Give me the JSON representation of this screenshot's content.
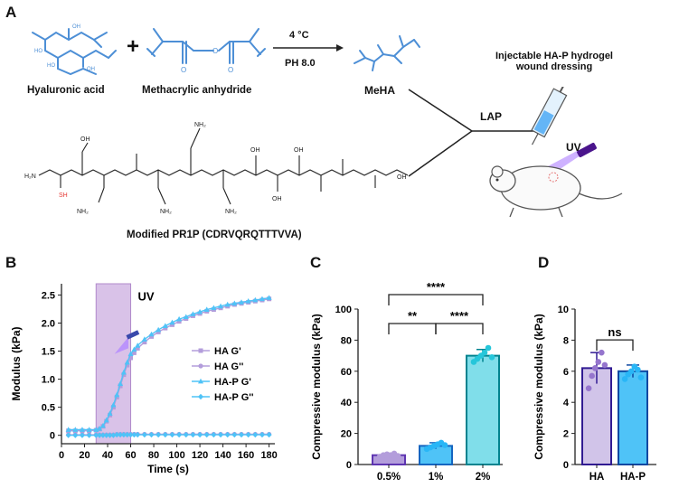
{
  "panel_a": {
    "letter": "A",
    "reagent_1": "Hyaluronic acid",
    "reagent_2": "Methacrylic anhydride",
    "condition_temp": "4 °C",
    "condition_ph": "PH 8.0",
    "product": "MeHA",
    "crosslinker": "LAP",
    "uv_label": "UV",
    "dressing_title_line1": "Injectable HA-P hydrogel",
    "dressing_title_line2": "wound dressing",
    "peptide_caption": "Modified PR1P (CDRVQRQTTTVVA)",
    "structure_labels": {
      "h2n": "H₂N",
      "sh": "SH",
      "oh": "OH",
      "nh2": "NH₂",
      "nh": "NH",
      "n": "N",
      "h": "H",
      "o": "O",
      "ho": "HO"
    }
  },
  "chart_data": [
    {
      "panel": "B",
      "type": "line",
      "xlabel": "Time (s)",
      "ylabel": "Modulus (kPa)",
      "xlim": [
        0,
        185
      ],
      "ylim": [
        -0.15,
        2.7
      ],
      "xticks": [
        0,
        20,
        40,
        60,
        80,
        100,
        120,
        140,
        160,
        180
      ],
      "yticks": [
        0,
        0.5,
        1.0,
        1.5,
        2.0,
        2.5
      ],
      "ytick_labels": [
        "0",
        "0.5",
        "1.0",
        "1.5",
        "2.0",
        "2.5"
      ],
      "annotation": "UV",
      "uv_window": [
        30,
        60
      ],
      "legend_position": "right",
      "colors": {
        "HA": "#b39ddb",
        "HA-P": "#4fc3f7",
        "uv_band": "#d9c2e8",
        "uv_border": "#b18acb"
      },
      "x": [
        6,
        12,
        18,
        24,
        30,
        33,
        36,
        39,
        42,
        45,
        48,
        51,
        54,
        57,
        60,
        63,
        66,
        72,
        78,
        84,
        90,
        96,
        102,
        108,
        114,
        120,
        126,
        132,
        138,
        144,
        150,
        156,
        162,
        168,
        174,
        180
      ],
      "series": [
        {
          "name": "HA G'",
          "marker": "square",
          "values": [
            0.08,
            0.08,
            0.08,
            0.08,
            0.09,
            0.11,
            0.16,
            0.25,
            0.36,
            0.5,
            0.68,
            0.88,
            1.08,
            1.25,
            1.38,
            1.47,
            1.55,
            1.66,
            1.76,
            1.84,
            1.91,
            1.97,
            2.03,
            2.08,
            2.13,
            2.17,
            2.21,
            2.24,
            2.27,
            2.3,
            2.33,
            2.35,
            2.37,
            2.39,
            2.41,
            2.43
          ]
        },
        {
          "name": "HA G''",
          "marker": "circle",
          "values": [
            0.01,
            0.01,
            0.01,
            0.01,
            0.01,
            0.01,
            0.01,
            0.01,
            0.01,
            0.01,
            0.02,
            0.02,
            0.02,
            0.02,
            0.02,
            0.02,
            0.02,
            0.02,
            0.02,
            0.02,
            0.02,
            0.02,
            0.02,
            0.02,
            0.02,
            0.02,
            0.02,
            0.02,
            0.02,
            0.02,
            0.02,
            0.02,
            0.02,
            0.02,
            0.02,
            0.02
          ]
        },
        {
          "name": "HA-P G'",
          "marker": "triangle",
          "values": [
            0.1,
            0.1,
            0.1,
            0.1,
            0.1,
            0.12,
            0.17,
            0.27,
            0.39,
            0.54,
            0.72,
            0.92,
            1.12,
            1.3,
            1.45,
            1.53,
            1.6,
            1.71,
            1.8,
            1.88,
            1.95,
            2.01,
            2.07,
            2.11,
            2.16,
            2.2,
            2.24,
            2.27,
            2.3,
            2.33,
            2.35,
            2.37,
            2.39,
            2.41,
            2.43,
            2.45
          ]
        },
        {
          "name": "HA-P G''",
          "marker": "diamond",
          "values": [
            0.0,
            0.0,
            0.0,
            0.0,
            0.0,
            0.0,
            0.0,
            0.0,
            0.0,
            0.0,
            0.01,
            0.01,
            0.01,
            0.01,
            0.01,
            0.01,
            0.01,
            0.01,
            0.01,
            0.01,
            0.01,
            0.01,
            0.01,
            0.01,
            0.01,
            0.01,
            0.01,
            0.01,
            0.01,
            0.01,
            0.01,
            0.01,
            0.01,
            0.01,
            0.01,
            0.01
          ]
        }
      ]
    },
    {
      "panel": "C",
      "type": "bar",
      "ylabel": "Compressive modulus (kPa)",
      "ylim": [
        0,
        100
      ],
      "yticks": [
        0,
        20,
        40,
        60,
        80,
        100
      ],
      "categories": [
        "0.5%",
        "1%",
        "2%"
      ],
      "values": [
        6,
        12,
        70
      ],
      "errors": [
        1,
        2,
        4
      ],
      "points": [
        [
          5,
          6,
          6.5,
          6,
          7,
          5.5
        ],
        [
          10,
          11,
          12,
          13,
          14,
          12.5
        ],
        [
          66,
          68,
          70,
          72,
          75,
          69
        ]
      ],
      "colors": {
        "fill": [
          "#b39ddb",
          "#4fc3f7",
          "#80deea"
        ],
        "edge": [
          "#5e35b1",
          "#1565c0",
          "#00838f"
        ],
        "point": [
          "#b39ddb",
          "#29b6f6",
          "#26c6da"
        ]
      },
      "significance": [
        {
          "pair": [
            0,
            1
          ],
          "label": "**"
        },
        {
          "pair": [
            1,
            2
          ],
          "label": "****"
        },
        {
          "pair": [
            0,
            2
          ],
          "label": "****"
        }
      ]
    },
    {
      "panel": "D",
      "type": "bar",
      "ylabel": "Compressive modulus (kPa)",
      "ylim": [
        0,
        10
      ],
      "yticks": [
        0,
        2,
        4,
        6,
        8,
        10
      ],
      "categories": [
        "HA",
        "HA-P"
      ],
      "values": [
        6.2,
        6.0
      ],
      "errors": [
        1.0,
        0.4
      ],
      "points": [
        [
          4.9,
          5.7,
          6.2,
          6.6,
          7.2,
          6.4
        ],
        [
          5.5,
          5.8,
          6.0,
          6.3,
          6.1,
          5.6
        ]
      ],
      "colors": {
        "fill": [
          "#d1c4e9",
          "#4fc3f7"
        ],
        "edge": [
          "#311b92",
          "#0d47a1"
        ],
        "point": [
          "#9575cd",
          "#29b6f6"
        ]
      },
      "significance": [
        {
          "pair": [
            0,
            1
          ],
          "label": "ns"
        }
      ]
    }
  ]
}
